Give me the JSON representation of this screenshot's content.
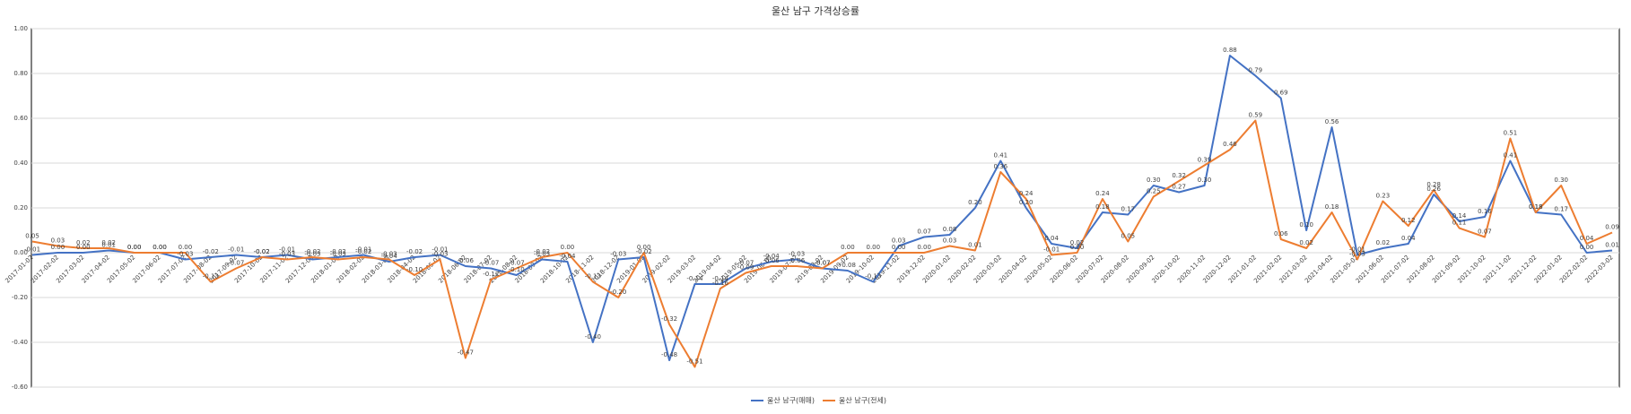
{
  "chart_data": {
    "type": "line",
    "title": "울산 남구 가격상승률",
    "categories": [
      "2017-01-02",
      "2017-02-02",
      "2017-03-02",
      "2017-04-02",
      "2017-05-02",
      "2017-06-02",
      "2017-07-02",
      "2017-08-02",
      "2017-09-02",
      "2017-10-02",
      "2017-11-02",
      "2017-12-02",
      "2018-01-02",
      "2018-02-02",
      "2018-03-02",
      "2018-04-02",
      "2018-05-02",
      "2018-06-02",
      "2018-07-02",
      "2018-08-02",
      "2018-09-02",
      "2018-10-02",
      "2018-11-02",
      "2018-12-02",
      "2019-01-02",
      "2019-02-02",
      "2019-03-02",
      "2019-04-02",
      "2019-05-02",
      "2019-06-02",
      "2019-07-02",
      "2019-08-02",
      "2019-09-02",
      "2019-10-02",
      "2019-11-02",
      "2019-12-02",
      "2020-01-02",
      "2020-02-02",
      "2020-03-02",
      "2020-04-02",
      "2020-05-02",
      "2020-06-02",
      "2020-07-02",
      "2020-08-02",
      "2020-09-02",
      "2020-10-02",
      "2020-11-02",
      "2020-12-02",
      "2021-01-02",
      "2021-02-02",
      "2021-03-02",
      "2021-04-02",
      "2021-05-02",
      "2021-06-02",
      "2021-07-02",
      "2021-08-02",
      "2021-09-02",
      "2021-10-02",
      "2021-11-02",
      "2021-12-02",
      "2022-01-02",
      "2022-02-02",
      "2022-03-02"
    ],
    "series": [
      {
        "name": "울산 남구(매매)",
        "color": "#4472c4",
        "values": [
          -0.01,
          0,
          0,
          0.01,
          0,
          0,
          -0.03,
          -0.02,
          -0.01,
          -0.02,
          -0.01,
          -0.03,
          -0.02,
          -0.01,
          -0.04,
          -0.02,
          -0.01,
          -0.06,
          -0.07,
          -0.1,
          -0.03,
          -0.04,
          -0.4,
          -0.03,
          -0.02,
          -0.48,
          -0.14,
          -0.14,
          -0.07,
          -0.04,
          -0.03,
          -0.07,
          -0.08,
          -0.13,
          0.03,
          0.07,
          0.08,
          0.2,
          0.41,
          0.2,
          0.04,
          0.02,
          0.18,
          0.17,
          0.3,
          0.27,
          0.3,
          0.88,
          0.79,
          0.69,
          0.1,
          0.56,
          -0.01,
          0.02,
          0.04,
          0.26,
          0.14,
          0.16,
          0.41,
          0.18,
          0.17,
          0,
          0.01
        ],
        "value_labels": [
          "-0.01",
          "0.00",
          "0.00",
          "0.01",
          "0.00",
          "0.00",
          "-0.03",
          "-0.02",
          "-0.01",
          "-0.02",
          "-0.01",
          "-0.03",
          "-0.02",
          "-0.01",
          "-0.04",
          "-0.02",
          "-0.01",
          "-0.06",
          "-0.07",
          "-0.10",
          "-0.03",
          "-0.04",
          "-0.40",
          "-0.03",
          "-0.02",
          "-0.48",
          "-0.14",
          "-0.14",
          "-0.07",
          "-0.04",
          "-0.03",
          "-0.07",
          "-0.08",
          "-0.13",
          "0.03",
          "0.07",
          "0.08",
          "0.20",
          "0.41",
          "0.20",
          "0.04",
          "0.02",
          "0.18",
          "0.17",
          "0.30",
          "0.27",
          "0.30",
          "0.88",
          "0.79",
          "0.69",
          "0.10",
          "0.56",
          "-0.01",
          "0.02",
          "0.04",
          "0.26",
          "0.14",
          "0.16",
          "0.41",
          "0.18",
          "0.17",
          "0.00",
          "0.01"
        ]
      },
      {
        "name": "울산 남구(전세)",
        "color": "#ed7d31",
        "values": [
          0.05,
          0.03,
          0.02,
          0.02,
          0,
          0,
          0,
          -0.13,
          -0.07,
          -0.02,
          -0.03,
          -0.02,
          -0.03,
          -0.02,
          -0.03,
          -0.1,
          -0.03,
          -0.47,
          -0.12,
          -0.07,
          -0.02,
          0,
          -0.13,
          -0.2,
          0,
          -0.32,
          -0.51,
          -0.16,
          -0.09,
          -0.06,
          -0.06,
          -0.07,
          0,
          0,
          0,
          0,
          0.03,
          0.01,
          0.36,
          0.24,
          -0.01,
          0,
          0.24,
          0.05,
          0.25,
          0.32,
          0.39,
          0.46,
          0.59,
          0.06,
          0.02,
          0.18,
          -0.03,
          0.23,
          0.12,
          0.28,
          0.11,
          0.07,
          0.51,
          0.18,
          0.3,
          0.04,
          0.09
        ],
        "value_labels": [
          "0.05",
          "0.03",
          "0.02",
          "0.02",
          "0.00",
          "0.00",
          "0.00",
          "-0.13",
          "-0.07",
          "-0.02",
          "-0.03",
          "-0.02",
          "-0.03",
          "-0.02",
          "-0.03",
          "-0.10",
          "-0.03",
          "-0.47",
          "-0.12",
          "-0.07",
          "-0.02",
          "0.00",
          "-0.13",
          "-0.20",
          "0.00",
          "-0.32",
          "-0.51",
          "-0.16",
          "-0.09",
          "-0.06",
          "-0.06",
          "-0.07",
          "0.00",
          "0.00",
          "0.00",
          "0.00",
          "0.03",
          "0.01",
          "0.36",
          "0.24",
          "-0.01",
          "0.00",
          "0.24",
          "0.05",
          "0.25",
          "0.32",
          "0.39",
          "0.46",
          "0.59",
          "0.06",
          "0.02",
          "0.18",
          "-0.03",
          "0.23",
          "0.12",
          "0.28",
          "0.11",
          "0.07",
          "0.51",
          "0.18",
          "0.30",
          "0.04",
          "0.09"
        ]
      }
    ],
    "ylim": [
      -0.6,
      1.0
    ],
    "yticks": [
      {
        "value": -0.6,
        "label": "-0.60"
      },
      {
        "value": -0.4,
        "label": "-0.40"
      },
      {
        "value": -0.2,
        "label": "-0.20"
      },
      {
        "value": 0,
        "label": "0.00"
      },
      {
        "value": 0.2,
        "label": "0.20"
      },
      {
        "value": 0.4,
        "label": "0.40"
      },
      {
        "value": 0.6,
        "label": "0.60"
      },
      {
        "value": 0.8,
        "label": "0.80"
      },
      {
        "value": 1.0,
        "label": "1.00"
      }
    ],
    "grid": true,
    "legend": "bottom"
  }
}
